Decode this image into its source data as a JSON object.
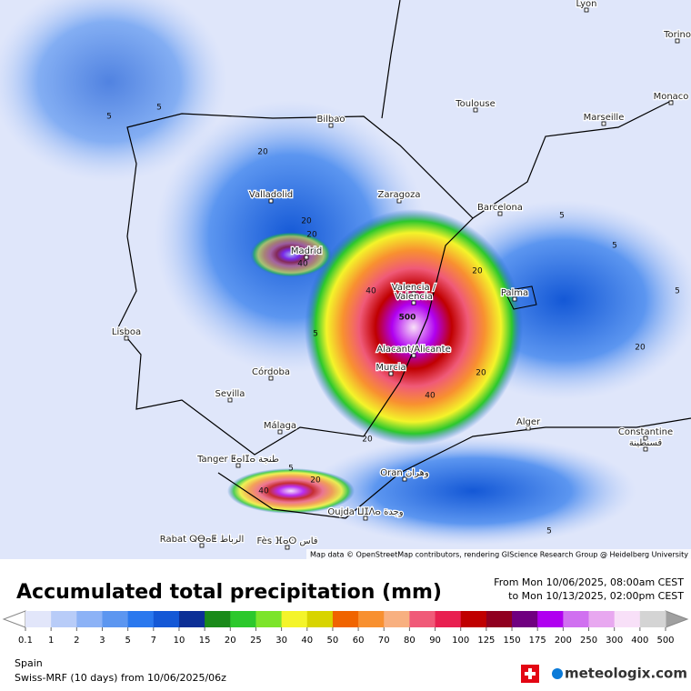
{
  "header": {
    "title": "Accumulated total precipitation (mm)",
    "from": "From Mon 10/06/2025, 08:00am CEST",
    "to": "to Mon 10/13/2025, 02:00pm CEST"
  },
  "legend": {
    "ticks": [
      0.1,
      1,
      2,
      3,
      5,
      7,
      10,
      15,
      20,
      25,
      30,
      40,
      50,
      60,
      70,
      80,
      90,
      100,
      125,
      150,
      175,
      200,
      250,
      300,
      400,
      500
    ],
    "colors": [
      "#e2e6fa",
      "#b8ccf8",
      "#8cb2f6",
      "#5c96f0",
      "#2a78ee",
      "#1458d6",
      "#0c2f96",
      "#1a8a1a",
      "#2cc82c",
      "#7ce42a",
      "#f4f42a",
      "#d8d400",
      "#f06400",
      "#f89030",
      "#f8b080",
      "#f05a78",
      "#e82050",
      "#c00000",
      "#900020",
      "#700080",
      "#b000f0",
      "#d070f0",
      "#e8a8f0",
      "#f8e0f8",
      "#d4d4d4"
    ]
  },
  "footer": {
    "region": "Spain",
    "model": "Swiss-MRF (10 days)  from  10/06/2025/06z",
    "brand": "meteologix.com"
  },
  "map": {
    "attribution": "Map data © OpenStreetMap contributors, rendering GIScience Research Group @ Heidelberg University",
    "cities": [
      "Lyon",
      "Torino",
      "Monaco",
      "Toulouse",
      "Marseille",
      "Bilbao",
      "Zaragoza",
      "Valladolid",
      "Barcelona",
      "Madrid",
      "Valencia /",
      "Valencia",
      "Palma",
      "Lisboa",
      "Alacant/Alicante",
      "Murcia",
      "Córdoba",
      "Sevilla",
      "Alger",
      "Málaga",
      "Constantine",
      "قسنطينة",
      "Tanger ⵟⴰⵏⵊⴰ طنجة",
      "Oran وهران",
      "Oujda ⵡⵊⴷⴰ وجدة",
      "Rabat ⵕⴱⴰⵟ الرباط",
      "Fès ⴼⴰⵙ فاس"
    ],
    "contour_labels": [
      "5",
      "5",
      "5",
      "20",
      "20",
      "40",
      "20",
      "5",
      "40",
      "20",
      "500",
      "40",
      "20",
      "20",
      "5",
      "40",
      "20",
      "5",
      "5",
      "20",
      "5"
    ]
  }
}
